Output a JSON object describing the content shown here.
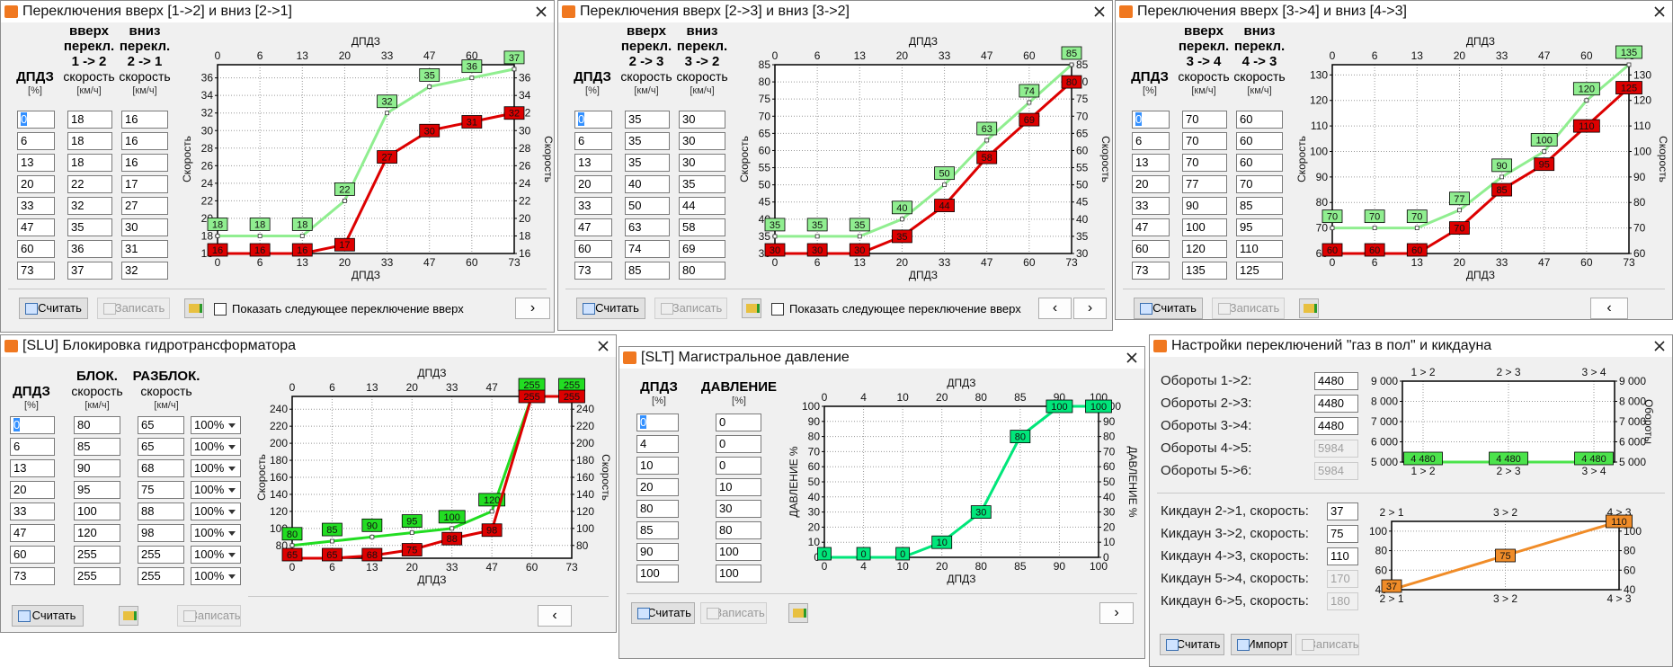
{
  "windows": [
    {
      "title": "Переключения вверх [1->2] и вниз [2->1]",
      "headers": [
        {
          "bold": [
            "ДПДЗ"
          ],
          "unit": "[%]"
        },
        {
          "bold": [
            "вверх",
            "перекл.",
            "1 -> 2"
          ],
          "sub": "скорость",
          "unit": "[км/ч]"
        },
        {
          "bold": [
            "вниз",
            "перекл.",
            "2 -> 1"
          ],
          "sub": "скорость",
          "unit": "[км/ч]"
        }
      ],
      "rows": [
        [
          "0",
          "18",
          "16"
        ],
        [
          "6",
          "18",
          "16"
        ],
        [
          "13",
          "18",
          "16"
        ],
        [
          "20",
          "22",
          "17"
        ],
        [
          "33",
          "32",
          "27"
        ],
        [
          "47",
          "35",
          "30"
        ],
        [
          "60",
          "36",
          "31"
        ],
        [
          "73",
          "37",
          "32"
        ]
      ],
      "charts": [
        {
          "type": "line",
          "x_label": "ДПДЗ",
          "y_label": "Скорость",
          "y2_label": "Скорость",
          "categories": [
            0,
            6,
            13,
            20,
            33,
            47,
            60,
            73
          ],
          "ylim": [
            16,
            37.5
          ],
          "yticks": [
            16,
            18,
            20,
            22,
            24,
            26,
            28,
            30,
            32,
            34,
            36
          ],
          "series": [
            {
              "color": "#90ee90",
              "values": [
                18,
                18,
                18,
                22,
                32,
                35,
                36,
                37
              ]
            },
            {
              "color": "#dd0000",
              "values": [
                16,
                16,
                16,
                17,
                27,
                30,
                31,
                32
              ]
            }
          ]
        }
      ],
      "buttons": [
        {
          "label": "Считать",
          "enabled": true
        },
        {
          "label": "Записать",
          "enabled": false
        }
      ],
      "checkbox": "Показать следующее переключение вверх",
      "nav": [
        "›"
      ]
    },
    {
      "title": "Переключения вверх [2->3] и вниз [3->2]",
      "headers": [
        {
          "bold": [
            "ДПДЗ"
          ],
          "unit": "[%]"
        },
        {
          "bold": [
            "вверх",
            "перекл.",
            "2 -> 3"
          ],
          "sub": "скорость",
          "unit": "[км/ч]"
        },
        {
          "bold": [
            "вниз",
            "перекл.",
            "3 -> 2"
          ],
          "sub": "скорость",
          "unit": "[км/ч]"
        }
      ],
      "rows": [
        [
          "0",
          "35",
          "30"
        ],
        [
          "6",
          "35",
          "30"
        ],
        [
          "13",
          "35",
          "30"
        ],
        [
          "20",
          "40",
          "35"
        ],
        [
          "33",
          "50",
          "44"
        ],
        [
          "47",
          "63",
          "58"
        ],
        [
          "60",
          "74",
          "69"
        ],
        [
          "73",
          "85",
          "80"
        ]
      ],
      "charts": [
        {
          "type": "line",
          "x_label": "ДПДЗ",
          "y_label": "Скорость",
          "y2_label": "Скорость",
          "categories": [
            0,
            6,
            13,
            20,
            33,
            47,
            60,
            73
          ],
          "ylim": [
            30,
            85
          ],
          "yticks": [
            30,
            35,
            40,
            45,
            50,
            55,
            60,
            65,
            70,
            75,
            80,
            85
          ],
          "series": [
            {
              "color": "#90ee90",
              "values": [
                35,
                35,
                35,
                40,
                50,
                63,
                74,
                85
              ]
            },
            {
              "color": "#dd0000",
              "values": [
                30,
                30,
                30,
                35,
                44,
                58,
                69,
                80
              ]
            }
          ]
        }
      ],
      "buttons": [
        {
          "label": "Считать",
          "enabled": true
        },
        {
          "label": "Записать",
          "enabled": false
        }
      ],
      "checkbox": "Показать следующее переключение вверх",
      "nav": [
        "‹",
        "›"
      ]
    },
    {
      "title": "Переключения вверх [3->4] и вниз [4->3]",
      "headers": [
        {
          "bold": [
            "ДПДЗ"
          ],
          "unit": "[%]"
        },
        {
          "bold": [
            "вверх",
            "перекл.",
            "3 -> 4"
          ],
          "sub": "скорость",
          "unit": "[км/ч]"
        },
        {
          "bold": [
            "вниз",
            "перекл.",
            "4 -> 3"
          ],
          "sub": "скорость",
          "unit": "[км/ч]"
        }
      ],
      "rows": [
        [
          "0",
          "70",
          "60"
        ],
        [
          "6",
          "70",
          "60"
        ],
        [
          "13",
          "70",
          "60"
        ],
        [
          "20",
          "77",
          "70"
        ],
        [
          "33",
          "90",
          "85"
        ],
        [
          "47",
          "100",
          "95"
        ],
        [
          "60",
          "120",
          "110"
        ],
        [
          "73",
          "135",
          "125"
        ]
      ],
      "charts": [
        {
          "type": "line",
          "x_label": "ДПДЗ",
          "y_label": "Скорость",
          "y2_label": "Скорость",
          "categories": [
            0,
            6,
            13,
            20,
            33,
            47,
            60,
            73
          ],
          "ylim": [
            60,
            134
          ],
          "yticks": [
            60,
            70,
            80,
            90,
            100,
            110,
            120,
            130
          ],
          "series": [
            {
              "color": "#90ee90",
              "values": [
                70,
                70,
                70,
                77,
                90,
                100,
                120,
                135
              ]
            },
            {
              "color": "#dd0000",
              "values": [
                60,
                60,
                60,
                70,
                85,
                95,
                110,
                125
              ]
            }
          ]
        }
      ],
      "buttons": [
        {
          "label": "Считать",
          "enabled": true
        },
        {
          "label": "Записать",
          "enabled": false
        }
      ],
      "nav": [
        "‹"
      ]
    },
    {
      "title": "[SLU] Блокировка гидротрансформатора",
      "headers": [
        {
          "bold": [
            "ДПДЗ"
          ],
          "unit": "[%]"
        },
        {
          "bold": [
            "БЛОК."
          ],
          "sub": "скорость",
          "unit": "[км/ч]"
        },
        {
          "bold": [
            "РАЗБЛОК."
          ],
          "sub": "скорость",
          "unit": "[км/ч]"
        }
      ],
      "rows": [
        [
          "0",
          "80",
          "65",
          "100%"
        ],
        [
          "6",
          "85",
          "65",
          "100%"
        ],
        [
          "13",
          "90",
          "68",
          "100%"
        ],
        [
          "20",
          "95",
          "75",
          "100%"
        ],
        [
          "33",
          "100",
          "88",
          "100%"
        ],
        [
          "47",
          "120",
          "98",
          "100%"
        ],
        [
          "60",
          "255",
          "255",
          "100%"
        ],
        [
          "73",
          "255",
          "255",
          "100%"
        ]
      ],
      "charts": [
        {
          "type": "line",
          "x_label": "ДПДЗ",
          "y_label": "Скорость",
          "y2_label": "Скорость",
          "categories": [
            0,
            6,
            13,
            20,
            33,
            47,
            60,
            73
          ],
          "ylim": [
            65,
            255
          ],
          "yticks": [
            80,
            100,
            120,
            140,
            160,
            180,
            200,
            220,
            240
          ],
          "series": [
            {
              "color": "#22dd22",
              "values": [
                80,
                85,
                90,
                95,
                100,
                120,
                255,
                255
              ]
            },
            {
              "color": "#dd0000",
              "values": [
                65,
                65,
                68,
                75,
                88,
                98,
                255,
                255
              ]
            }
          ]
        }
      ],
      "buttons": [
        {
          "label": "Считать",
          "enabled": true
        },
        {
          "label": "Записать",
          "enabled": false
        }
      ],
      "nav": [
        "‹"
      ]
    },
    {
      "title": "[SLT] Магистральное давление",
      "headers": [
        {
          "bold": [
            "ДПДЗ"
          ],
          "unit": "[%]"
        },
        {
          "bold": [
            "ДАВЛЕНИЕ"
          ],
          "unit": "[%]"
        }
      ],
      "rows": [
        [
          "0",
          "0"
        ],
        [
          "4",
          "0"
        ],
        [
          "10",
          "0"
        ],
        [
          "20",
          "10"
        ],
        [
          "80",
          "30"
        ],
        [
          "85",
          "80"
        ],
        [
          "90",
          "100"
        ],
        [
          "100",
          "100"
        ]
      ],
      "charts": [
        {
          "type": "line",
          "x_label": "ДПДЗ",
          "y_label": "ДАВЛЕНИЕ %",
          "y2_label": "ДАВЛЕНИЕ %",
          "categories": [
            0,
            4,
            10,
            20,
            80,
            85,
            90,
            100
          ],
          "ylim": [
            0,
            100
          ],
          "yticks": [
            0,
            10,
            20,
            30,
            40,
            50,
            60,
            70,
            80,
            90,
            100
          ],
          "series": [
            {
              "color": "#00e67a",
              "values": [
                0,
                0,
                0,
                10,
                30,
                80,
                100,
                100
              ]
            }
          ]
        }
      ],
      "buttons": [
        {
          "label": "Считать",
          "enabled": true
        },
        {
          "label": "Записать",
          "enabled": false
        }
      ],
      "nav": [
        "›"
      ]
    },
    {
      "title": "Настройки переключений \"газ в пол\" и кикдауна",
      "rpm_rows": [
        {
          "label": "Обороты 1->2:",
          "value": "4480",
          "enabled": true
        },
        {
          "label": "Обороты 2->3:",
          "value": "4480",
          "enabled": true
        },
        {
          "label": "Обороты 3->4:",
          "value": "4480",
          "enabled": true
        },
        {
          "label": "Обороты 4->5:",
          "value": "5984",
          "enabled": false
        },
        {
          "label": "Обороты 5->6:",
          "value": "5984",
          "enabled": false
        }
      ],
      "kickdown_rows": [
        {
          "label": "Кикдаун 2->1, скорость:",
          "value": "37",
          "enabled": true
        },
        {
          "label": "Кикдаун 3->2, скорость:",
          "value": "75",
          "enabled": true
        },
        {
          "label": "Кикдаун 4->3, скорость:",
          "value": "110",
          "enabled": true
        },
        {
          "label": "Кикдаун 5->4, скорость:",
          "value": "170",
          "enabled": false
        },
        {
          "label": "Кикдаун 6->5, скорость:",
          "value": "180",
          "enabled": false
        }
      ],
      "charts": [
        {
          "type": "line",
          "y2_label": "Обороты",
          "categories": [
            "1 > 2",
            "2 > 3",
            "3 > 4"
          ],
          "ylim": [
            5000,
            9000
          ],
          "yticks": [
            {
              "value": 5000,
              "label": "5 000"
            },
            {
              "value": 6000,
              "label": "6 000"
            },
            {
              "value": 7000,
              "label": "7 000"
            },
            {
              "value": 8000,
              "label": "8 000"
            },
            {
              "value": 9000,
              "label": "9 000"
            }
          ],
          "series": [
            {
              "color": "#4be34b",
              "values": [
                4480,
                4480,
                4480
              ],
              "value_labels": [
                "4 480",
                "4 480",
                "4 480"
              ]
            }
          ]
        },
        {
          "type": "line",
          "categories": [
            "2 > 1",
            "3 > 2",
            "4 > 3"
          ],
          "ylim": [
            40,
            110
          ],
          "yticks": [
            40,
            60,
            80,
            100
          ],
          "series": [
            {
              "color": "#f08c28",
              "values": [
                37,
                75,
                110
              ]
            }
          ]
        }
      ],
      "buttons": [
        {
          "label": "Считать",
          "enabled": true
        },
        {
          "label": "Импорт",
          "enabled": true
        },
        {
          "label": "Записать",
          "enabled": false
        }
      ]
    }
  ]
}
